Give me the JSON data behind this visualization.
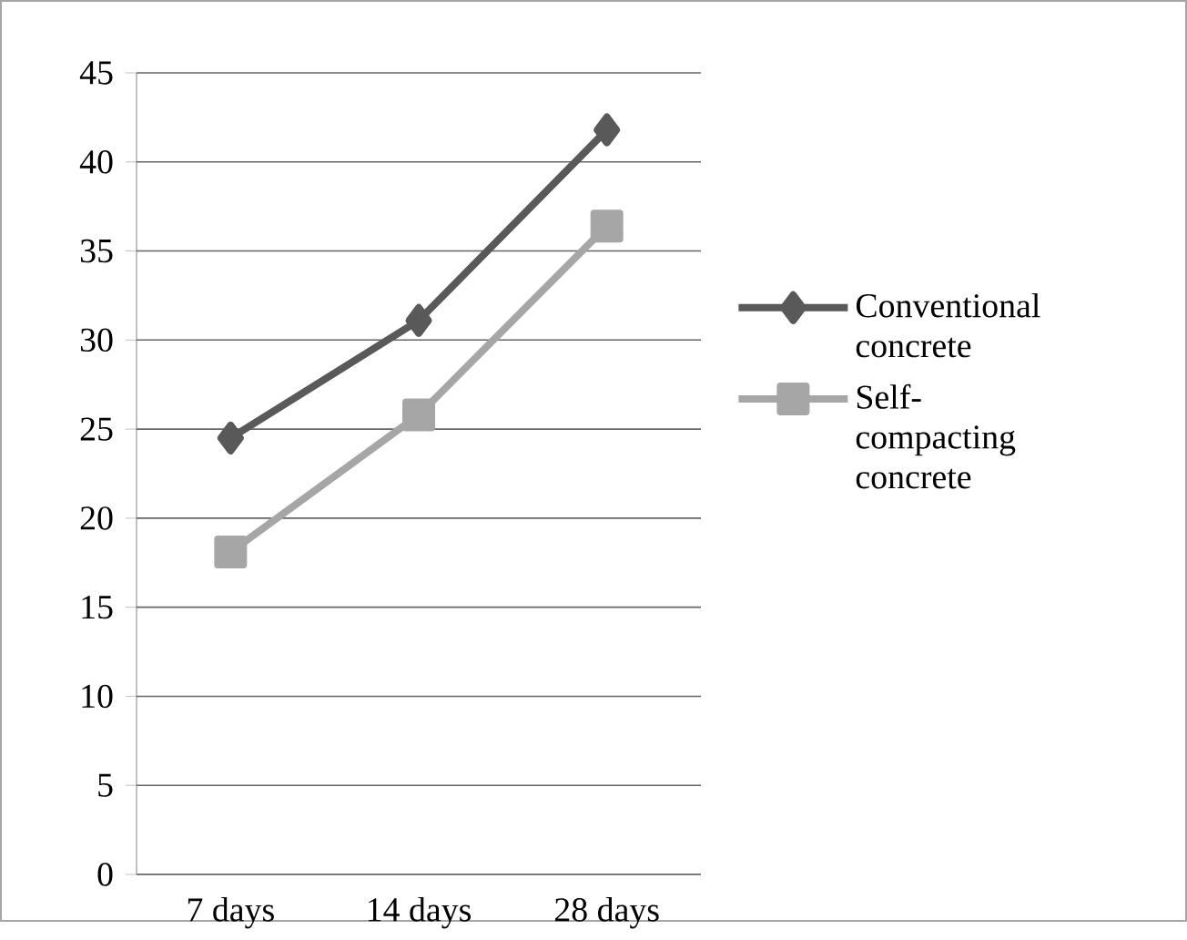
{
  "chart_data": {
    "type": "line",
    "categories": [
      "7 days",
      "14 days",
      "28 days"
    ],
    "series": [
      {
        "name": "Conventional concrete",
        "color": "#595959",
        "marker": "diamond",
        "values": [
          24.5,
          31.1,
          41.8
        ]
      },
      {
        "name": "Self-compacting concrete",
        "color": "#a6a6a6",
        "marker": "square",
        "values": [
          18.1,
          25.8,
          36.4
        ]
      }
    ],
    "ylim": [
      0,
      45
    ],
    "yticks": [
      0,
      5,
      10,
      15,
      20,
      25,
      30,
      35,
      40,
      45
    ],
    "grid": "y",
    "legend": "right",
    "line_style": "solid"
  }
}
